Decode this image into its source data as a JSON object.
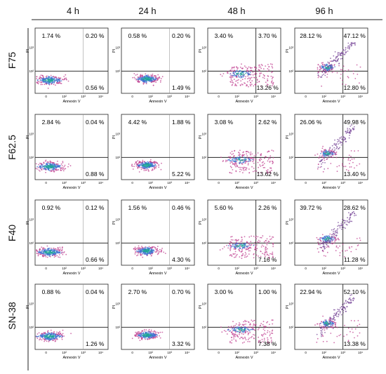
{
  "chart_data": {
    "type": "scatter",
    "columns": [
      "4 h",
      "24 h",
      "48 h",
      "96 h"
    ],
    "rows": [
      "F75",
      "F62.5",
      "F40",
      "SN-38"
    ],
    "xlabel": "Annexin V",
    "ylabel": "PI",
    "tick_labels": {
      "x": [
        "0",
        "10²",
        "10³",
        "10⁴"
      ],
      "y": [
        "10²",
        "10³"
      ]
    },
    "axis_scale": "log",
    "grid": false,
    "quadrant_labels_order": [
      "upper-left",
      "upper-right",
      "lower-right"
    ],
    "panels": [
      {
        "row": "F75",
        "col": "4 h",
        "ul": "1.74 %",
        "ur": "0.20 %",
        "lr": "0.56 %"
      },
      {
        "row": "F75",
        "col": "24 h",
        "ul": "0.58 %",
        "ur": "0.20 %",
        "lr": "1.49 %"
      },
      {
        "row": "F75",
        "col": "48 h",
        "ul": "3.40 %",
        "ur": "3.70 %",
        "lr": "13.26 %"
      },
      {
        "row": "F75",
        "col": "96 h",
        "ul": "28.12 %",
        "ur": "47.12 %",
        "lr": "12.80 %"
      },
      {
        "row": "F62.5",
        "col": "4 h",
        "ul": "2.84 %",
        "ur": "0.04 %",
        "lr": "0.88 %"
      },
      {
        "row": "F62.5",
        "col": "24 h",
        "ul": "4.42 %",
        "ur": "1.88 %",
        "lr": "5.22 %"
      },
      {
        "row": "F62.5",
        "col": "48 h",
        "ul": "3.08 %",
        "ur": "2.62 %",
        "lr": "13.62 %"
      },
      {
        "row": "F62.5",
        "col": "96 h",
        "ul": "26.06 %",
        "ur": "49.98 %",
        "lr": "13.40 %"
      },
      {
        "row": "F40",
        "col": "4 h",
        "ul": "0.92 %",
        "ur": "0.12 %",
        "lr": "0.66 %"
      },
      {
        "row": "F40",
        "col": "24 h",
        "ul": "1.56 %",
        "ur": "0.46 %",
        "lr": "4.30 %"
      },
      {
        "row": "F40",
        "col": "48 h",
        "ul": "5.60 %",
        "ur": "2.26 %",
        "lr": "7.16 %"
      },
      {
        "row": "F40",
        "col": "96 h",
        "ul": "39.72 %",
        "ur": "28.62 %",
        "lr": "11.28 %"
      },
      {
        "row": "SN-38",
        "col": "4 h",
        "ul": "0.88 %",
        "ur": "0.04 %",
        "lr": "1.26 %"
      },
      {
        "row": "SN-38",
        "col": "24 h",
        "ul": "2.70 %",
        "ur": "0.70 %",
        "lr": "3.32 %"
      },
      {
        "row": "SN-38",
        "col": "48 h",
        "ul": "3.00 %",
        "ur": "1.00 %",
        "lr": "7.38 %"
      },
      {
        "row": "SN-38",
        "col": "96 h",
        "ul": "22.94 %",
        "ur": "52.10 %",
        "lr": "13.38 %"
      }
    ],
    "colors": {
      "cluster_core": "#1fa39b",
      "cluster_mid": "#3f6fd0",
      "cluster_outer": "#c04090",
      "sparse": "#7a4a9a",
      "axis": "#222222"
    }
  }
}
